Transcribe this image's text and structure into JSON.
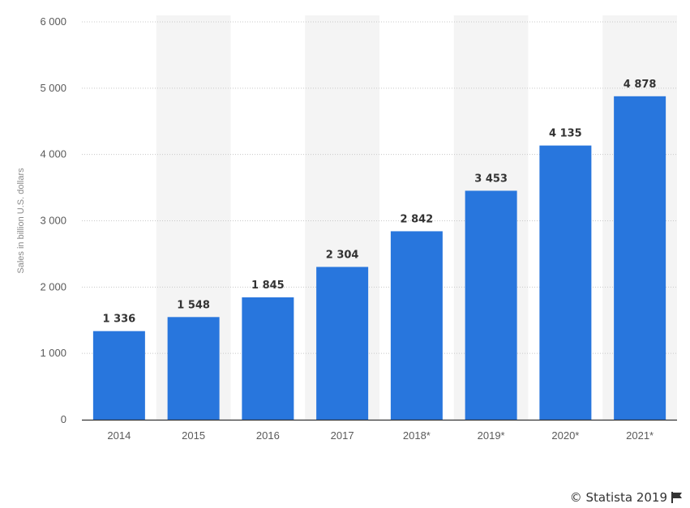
{
  "chart_data": {
    "type": "bar",
    "categories": [
      "2014",
      "2015",
      "2016",
      "2017",
      "2018*",
      "2019*",
      "2020*",
      "2021*"
    ],
    "values": [
      1336,
      1548,
      1845,
      2304,
      2842,
      3453,
      4135,
      4878
    ],
    "value_labels": [
      "1 336",
      "1 548",
      "1 845",
      "2 304",
      "2 842",
      "3 453",
      "4 135",
      "4 878"
    ],
    "ylabel": "Sales in billion U.S. dollars",
    "xlabel": "",
    "ylim": [
      0,
      6000
    ],
    "yticks": [
      0,
      1000,
      2000,
      3000,
      4000,
      5000,
      6000
    ],
    "ytick_labels": [
      "0",
      "1 000",
      "2 000",
      "3 000",
      "4 000",
      "5 000",
      "6 000"
    ],
    "grid": true,
    "bar_color": "#2876dd",
    "band_color": "#f4f4f4"
  },
  "credit": {
    "text": "© Statista 2019",
    "icon": "flag-icon"
  }
}
